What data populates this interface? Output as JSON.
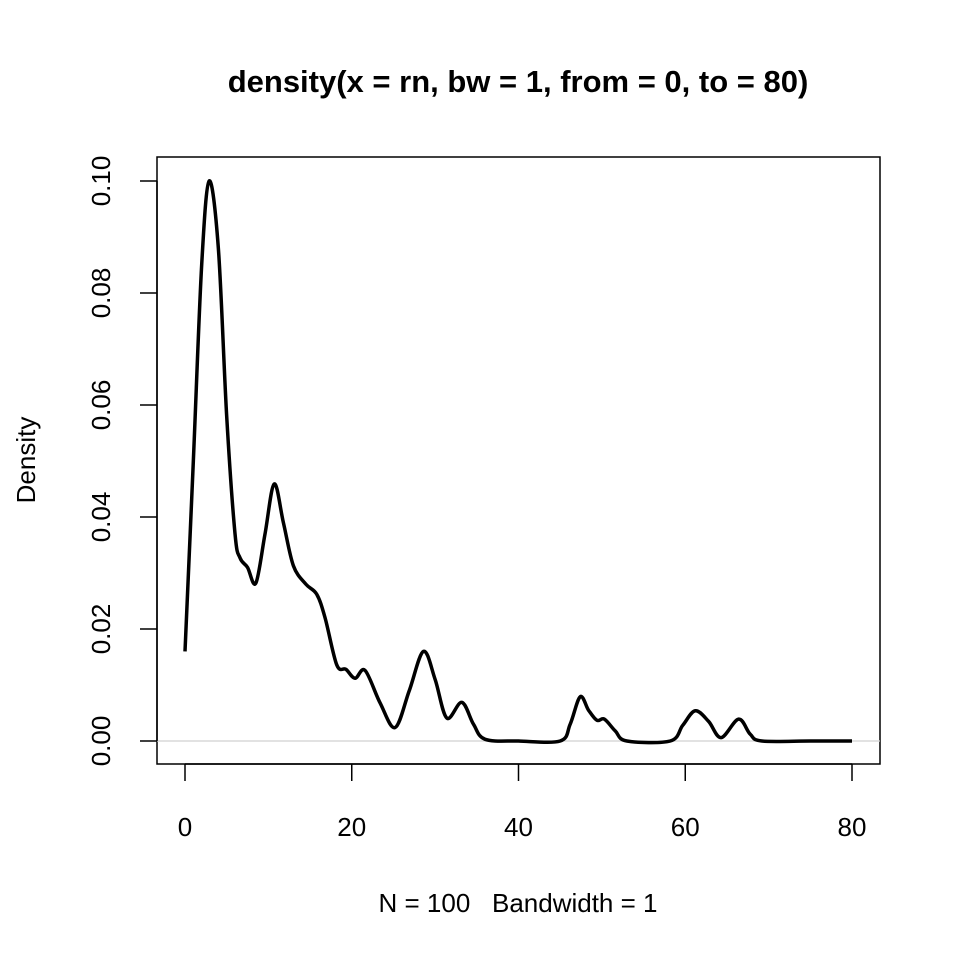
{
  "chart_data": {
    "type": "line",
    "title": "density(x = rn, bw = 1, from = 0, to = 80)",
    "xlabel": "N = 100   Bandwidth = 1",
    "ylabel": "Density",
    "xlim": [
      0,
      80
    ],
    "ylim": [
      0,
      0.1
    ],
    "x_ticks": [
      0,
      20,
      40,
      60,
      80
    ],
    "x_tick_labels": [
      "0",
      "20",
      "40",
      "60",
      "80"
    ],
    "y_ticks": [
      0,
      0.02,
      0.04,
      0.06,
      0.08,
      0.1
    ],
    "y_tick_labels": [
      "0.00",
      "0.02",
      "0.04",
      "0.06",
      "0.08",
      "0.10"
    ],
    "grid": false,
    "zero_line_color": "#d0d0d0",
    "line_color": "#000000",
    "series": [
      {
        "name": "density",
        "x": [
          0,
          1,
          2,
          2.9,
          4,
          5,
          6,
          6.6,
          7.5,
          8.5,
          9.6,
          10.7,
          11.8,
          13.0,
          14.5,
          15.8,
          16.8,
          18.2,
          19.3,
          20.4,
          21.6,
          23.4,
          25.2,
          26.9,
          28.6,
          30.0,
          31.4,
          33.2,
          34.6,
          36.0,
          40,
          45,
          46.2,
          47.4,
          48.4,
          49.4,
          50.3,
          51.6,
          53,
          58.2,
          59.7,
          61.2,
          62.8,
          64.3,
          66.4,
          67.8,
          69.2,
          75,
          80
        ],
        "y": [
          0.016,
          0.05,
          0.085,
          0.1,
          0.088,
          0.058,
          0.037,
          0.0327,
          0.031,
          0.0282,
          0.037,
          0.0459,
          0.039,
          0.0313,
          0.028,
          0.0262,
          0.022,
          0.0136,
          0.0128,
          0.0112,
          0.0126,
          0.0068,
          0.0024,
          0.009,
          0.016,
          0.011,
          0.0041,
          0.0069,
          0.003,
          0.0003,
          0,
          0,
          0.003,
          0.0079,
          0.0055,
          0.0037,
          0.0039,
          0.0018,
          0,
          0,
          0.0028,
          0.0054,
          0.0035,
          0.0006,
          0.0039,
          0.0012,
          0,
          0,
          0
        ]
      }
    ]
  }
}
